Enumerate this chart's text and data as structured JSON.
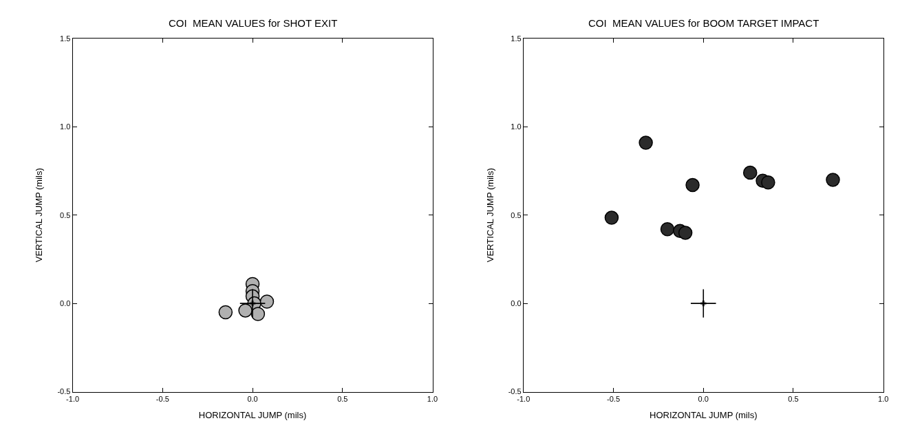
{
  "chart_data": [
    {
      "type": "scatter",
      "title": "COI  MEAN VALUES for SHOT EXIT",
      "xlabel": "HORIZONTAL JUMP (mils)",
      "ylabel": "VERTICAL JUMP (mils)",
      "xlim": [
        -1.0,
        1.0
      ],
      "ylim": [
        -0.5,
        1.5
      ],
      "xticks": [
        {
          "value": -1,
          "label": "-1.0"
        },
        {
          "value": -0.5,
          "label": "-0.5"
        },
        {
          "value": 0,
          "label": "0.0"
        },
        {
          "value": 0.5,
          "label": "0.5"
        },
        {
          "value": 1,
          "label": "1.0"
        }
      ],
      "yticks": [
        {
          "value": -0.5,
          "label": "-0.5"
        },
        {
          "value": 0,
          "label": "0.0"
        },
        {
          "value": 0.5,
          "label": "0.5"
        },
        {
          "value": 1,
          "label": "1.0"
        },
        {
          "value": 1.5,
          "label": "1.5"
        }
      ],
      "marker": "circle",
      "series": [
        {
          "color": "#b0b0b0",
          "x": [
            -0.15,
            0.0,
            0.0,
            0.0,
            0.01,
            0.08,
            -0.04,
            0.03
          ],
          "values": [
            -0.05,
            0.11,
            0.07,
            0.04,
            0.0,
            0.01,
            -0.04,
            -0.06
          ]
        },
        {
          "color": "#000000",
          "marker": "cross",
          "x": [
            0.0
          ],
          "values": [
            0.0
          ],
          "errors": [
            0.08
          ],
          "xerrors": [
            0.07
          ]
        }
      ]
    },
    {
      "type": "scatter",
      "title": "COI  MEAN VALUES for BOOM TARGET IMPACT",
      "xlabel": "HORIZONTAL JUMP (mils)",
      "ylabel": "VERTICAL JUMP (mils)",
      "xlim": [
        -1.0,
        1.0
      ],
      "ylim": [
        -0.5,
        1.5
      ],
      "xticks": [
        {
          "value": -1,
          "label": "-1.0"
        },
        {
          "value": -0.5,
          "label": "-0.5"
        },
        {
          "value": 0,
          "label": "0.0"
        },
        {
          "value": 0.5,
          "label": "0.5"
        },
        {
          "value": 1,
          "label": "1.0"
        }
      ],
      "yticks": [
        {
          "value": -0.5,
          "label": "-0.5"
        },
        {
          "value": 0,
          "label": "0.0"
        },
        {
          "value": 0.5,
          "label": "0.5"
        },
        {
          "value": 1,
          "label": "1.0"
        },
        {
          "value": 1.5,
          "label": "1.5"
        }
      ],
      "marker": "circle",
      "series": [
        {
          "color": "#2b2b2b",
          "x": [
            -0.32,
            -0.51,
            -0.2,
            -0.13,
            -0.1,
            -0.06,
            0.26,
            0.33,
            0.36,
            0.72
          ],
          "values": [
            0.91,
            0.485,
            0.42,
            0.41,
            0.4,
            0.67,
            0.74,
            0.695,
            0.685,
            0.7
          ]
        },
        {
          "color": "#000000",
          "marker": "cross",
          "x": [
            0.0
          ],
          "values": [
            0.0
          ],
          "errors": [
            0.08
          ],
          "xerrors": [
            0.07
          ]
        }
      ]
    }
  ]
}
